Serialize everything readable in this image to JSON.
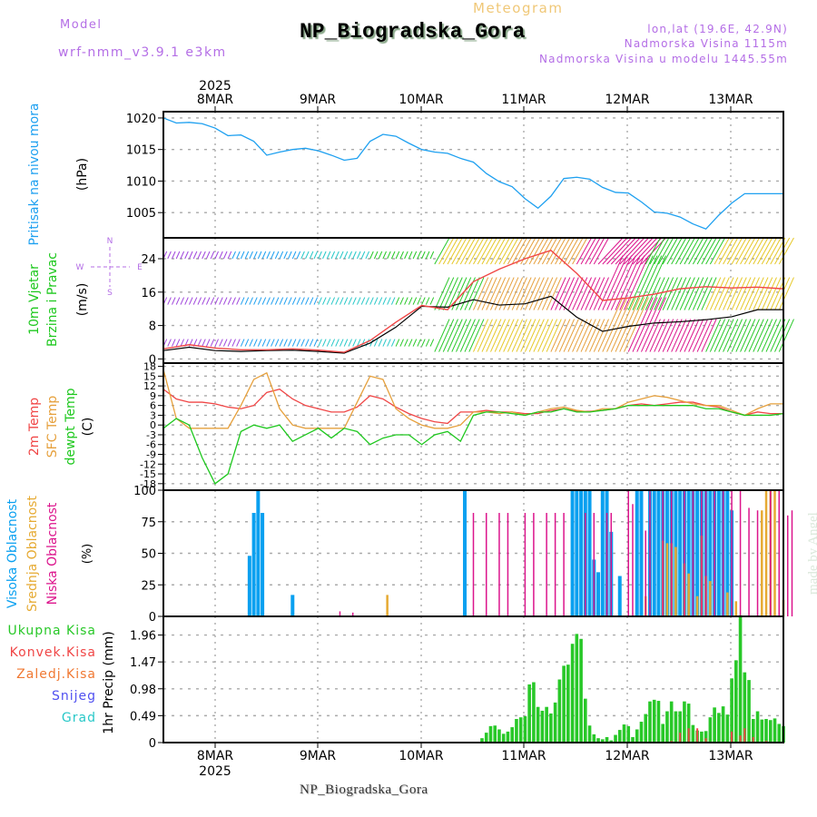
{
  "header": {
    "model_label": "Model",
    "model_name": "wrf-nmm_v3.9.1 e3km",
    "meteogram_label": "Meteogram",
    "station_title": "NP_Biogradska_Gora",
    "lonlat": "lon,lat (19.6E, 42.9N)",
    "elevation": "Nadmorska Visina 1115m",
    "model_elevation": "Nadmorska Visina u modelu 1445.55m"
  },
  "footer": {
    "station_title": "NP_Biogradska_Gora",
    "watermark": "made by Angel"
  },
  "colors": {
    "pressure": "#1ea0f0",
    "wind_label": "#1ec81e",
    "purple": "#a046dc",
    "temp2m": "#f04646",
    "sfc": "#e6a03c",
    "dewpt": "#1ec81e",
    "high_cloud": "#0aa0f0",
    "mid_cloud": "#e6aa32",
    "low_cloud": "#dc148c",
    "precip_total": "#28c828",
    "precip_conv": "#f04646",
    "freezing": "#f07832",
    "snow": "#5050f0",
    "hail": "#28c8c8",
    "compass": "#b46ee6"
  },
  "chart_data": [
    {
      "type": "line",
      "id": "pressure",
      "title": "Pritisak na nivou mora",
      "ylabel": "(hPa)",
      "x_ticks": [
        "8MAR",
        "9MAR",
        "10MAR",
        "11MAR",
        "12MAR",
        "13MAR"
      ],
      "top_year": "2025",
      "bottom_year": "2025",
      "x_unit": "hours from 7 MAR 12Z",
      "xlim": [
        0,
        144
      ],
      "ylim": [
        1001,
        1021
      ],
      "yticks": [
        1005,
        1010,
        1015,
        1020
      ],
      "grid": true,
      "series": [
        {
          "name": "Pritisak na nivou mora",
          "x": [
            0,
            3,
            6,
            9,
            12,
            15,
            18,
            21,
            24,
            27,
            30,
            33,
            36,
            39,
            42,
            45,
            48,
            51,
            54,
            57,
            60,
            63,
            66,
            69,
            72,
            75,
            78,
            81,
            84,
            87,
            90,
            93,
            96,
            99,
            102,
            105,
            108,
            111,
            114,
            117,
            120,
            123,
            126,
            129,
            132,
            135,
            138,
            141,
            144
          ],
          "values": [
            1020,
            1019.2,
            1019.3,
            1019.1,
            1018.4,
            1017.2,
            1017.3,
            1016.3,
            1014.1,
            1014.6,
            1015.0,
            1015.2,
            1014.8,
            1014.1,
            1013.3,
            1013.6,
            1016.3,
            1017.4,
            1017.1,
            1016.0,
            1015.0,
            1014.6,
            1014.4,
            1013.6,
            1013.0,
            1011.2,
            1009.9,
            1009.1,
            1007.2,
            1005.7,
            1007.6,
            1010.4,
            1010.6,
            1010.3,
            1009.0,
            1008.2,
            1008.1,
            1006.7,
            1005.1,
            1004.9,
            1004.3,
            1003.2,
            1002.4,
            1004.6,
            1006.5,
            1008.0,
            1008.0,
            1008.0,
            1008.0
          ]
        }
      ]
    },
    {
      "type": "line",
      "id": "wind",
      "title": "10m Vjetar Brzina i Pravac",
      "ylabel": "(m/s)",
      "compass": {
        "N": "N",
        "S": "S",
        "W": "W",
        "E": "E"
      },
      "xlim": [
        0,
        144
      ],
      "ylim": [
        -1,
        29
      ],
      "yticks": [
        0,
        8,
        16,
        24
      ],
      "grid": true,
      "series": [
        {
          "name": "Brzina vjetra (10m)",
          "color": "#000000",
          "x": [
            0,
            6,
            12,
            18,
            24,
            30,
            36,
            42,
            48,
            54,
            60,
            66,
            72,
            78,
            84,
            90,
            96,
            102,
            108,
            114,
            120,
            126,
            132,
            138,
            144
          ],
          "values": [
            2,
            2.8,
            2,
            1.8,
            2,
            2.1,
            1.8,
            1.4,
            3.8,
            7.6,
            12.6,
            12.4,
            14.2,
            12.9,
            13.2,
            15,
            10,
            6.6,
            7.8,
            8.6,
            8.9,
            9.4,
            10.1,
            11.8,
            11.8
          ]
        },
        {
          "name": "Udari vjetra",
          "color": "#f04646",
          "x": [
            0,
            6,
            12,
            18,
            24,
            30,
            36,
            42,
            48,
            54,
            60,
            66,
            72,
            78,
            84,
            90,
            96,
            102,
            108,
            114,
            120,
            126,
            132,
            138,
            144
          ],
          "values": [
            2.4,
            3.4,
            2.6,
            2.2,
            2.2,
            2.4,
            2.1,
            1.6,
            4.4,
            8.8,
            12.8,
            11.8,
            18.5,
            21.5,
            24,
            26,
            20.5,
            14,
            14.6,
            15.5,
            16.8,
            17.3,
            17,
            17.2,
            16.8
          ]
        }
      ],
      "barb_rows": [
        {
          "level": 24,
          "colors_by_segment": [
            "#a046dc",
            "#1ea0f0",
            "#28c8c8",
            "#28c828",
            "#e6c828",
            "#e6a03c",
            "#dc148c",
            "#28c828",
            "#e6c828"
          ]
        },
        {
          "level": 13,
          "colors_by_segment": [
            "#a046dc",
            "#1ea0f0",
            "#28c8c8",
            "#28c828",
            "#e6a03c",
            "#dc148c",
            "#28c828",
            "#e6c828"
          ]
        },
        {
          "level": 3,
          "colors_by_segment": [
            "#a046dc",
            "#1ea0f0",
            "#28c8c8",
            "#28c828",
            "#e6c828",
            "#e6a03c",
            "#dc148c",
            "#28c828"
          ]
        }
      ]
    },
    {
      "type": "line",
      "id": "temperature",
      "title": "2m Temp / SFC Temp / dewpt Temp",
      "ylabel": "(C)",
      "xlim": [
        0,
        144
      ],
      "ylim": [
        -20,
        19
      ],
      "yticks": [
        -18,
        -15,
        -12,
        -9,
        -6,
        -3,
        0,
        3,
        6,
        9,
        12,
        15,
        18
      ],
      "grid": true,
      "series": [
        {
          "name": "2m Temp",
          "x": [
            0,
            3,
            6,
            9,
            12,
            15,
            18,
            21,
            24,
            27,
            30,
            33,
            36,
            39,
            42,
            45,
            48,
            51,
            54,
            57,
            60,
            63,
            66,
            69,
            72,
            75,
            78,
            81,
            84,
            87,
            90,
            93,
            96,
            99,
            102,
            105,
            108,
            111,
            114,
            117,
            120,
            123,
            126,
            129,
            132,
            135,
            138,
            141,
            144
          ],
          "values": [
            11,
            8,
            7,
            7,
            6.5,
            5.5,
            5,
            6,
            10,
            11,
            8,
            6,
            5,
            4,
            4,
            5.5,
            9,
            8,
            5.5,
            3.5,
            2,
            1,
            0.5,
            4,
            4,
            4.5,
            4,
            4,
            3.5,
            3.5,
            4.5,
            5,
            4.2,
            4.2,
            4.5,
            5,
            6,
            6.5,
            6,
            6.5,
            7,
            7,
            6,
            5.5,
            4,
            3,
            4,
            3.5,
            3.5
          ]
        },
        {
          "name": "SFC Temp",
          "x": [
            0,
            3,
            6,
            9,
            12,
            15,
            18,
            21,
            24,
            27,
            30,
            33,
            36,
            39,
            42,
            45,
            48,
            51,
            54,
            57,
            60,
            63,
            66,
            69,
            72,
            75,
            78,
            81,
            84,
            87,
            90,
            93,
            96,
            99,
            102,
            105,
            108,
            111,
            114,
            117,
            120,
            123,
            126,
            129,
            132,
            135,
            138,
            141,
            144
          ],
          "values": [
            17,
            2,
            -1,
            -1,
            -1,
            -1,
            6,
            14,
            16,
            5,
            0,
            -1,
            -1,
            -1,
            -1,
            7,
            15,
            14,
            5,
            2,
            0,
            -1,
            -1,
            0,
            4,
            4,
            3.5,
            4,
            3,
            4,
            5,
            5.5,
            4.5,
            4,
            5,
            5,
            7,
            8,
            9,
            8.5,
            7.5,
            6.5,
            6,
            6,
            4.5,
            3,
            5,
            6.5,
            6.5
          ]
        },
        {
          "name": "dewpt Temp",
          "x": [
            0,
            3,
            6,
            9,
            12,
            15,
            18,
            21,
            24,
            27,
            30,
            33,
            36,
            39,
            42,
            45,
            48,
            51,
            54,
            57,
            60,
            63,
            66,
            69,
            72,
            75,
            78,
            81,
            84,
            87,
            90,
            93,
            96,
            99,
            102,
            105,
            108,
            111,
            114,
            117,
            120,
            123,
            126,
            129,
            132,
            135,
            138,
            141,
            144
          ],
          "values": [
            -1,
            2,
            0,
            -10,
            -18,
            -15,
            -2,
            0,
            -1,
            0,
            -5,
            -3,
            -1,
            -4,
            -1,
            -2,
            -6,
            -4,
            -3,
            -3,
            -6,
            -3,
            -2,
            -5,
            3,
            4,
            4,
            3.5,
            3,
            4,
            4,
            5,
            4,
            4,
            4.5,
            5,
            6,
            6,
            6,
            6,
            6,
            6,
            5,
            5,
            4,
            3,
            3,
            3,
            3.5
          ]
        }
      ]
    },
    {
      "type": "bar",
      "id": "clouds",
      "title": "Visoka / Srednja / Niska Oblacnost",
      "ylabel": "(%)",
      "xlim": [
        0,
        144
      ],
      "ylim": [
        0,
        100
      ],
      "yticks": [
        0,
        25,
        50,
        75,
        100
      ],
      "grid": true,
      "series": [
        {
          "name": "Visoka Oblacnost",
          "x": [
            20,
            21,
            22,
            23,
            30,
            70,
            95,
            96,
            97,
            98,
            99,
            100,
            101,
            102,
            103,
            104,
            106,
            110,
            111,
            113,
            114,
            115,
            116,
            117,
            118,
            119,
            120,
            121,
            122,
            123,
            124,
            125,
            126,
            127,
            128,
            129,
            130,
            131,
            132
          ],
          "values": [
            48,
            82,
            100,
            82,
            17,
            100,
            100,
            100,
            100,
            100,
            100,
            45,
            35,
            100,
            100,
            67,
            32,
            100,
            100,
            100,
            100,
            100,
            100,
            100,
            100,
            100,
            100,
            100,
            100,
            100,
            100,
            100,
            100,
            100,
            100,
            100,
            100,
            100,
            84
          ]
        },
        {
          "name": "Srednja Oblacnost",
          "x": [
            52,
            112,
            116,
            117,
            118,
            119,
            121,
            122,
            124,
            125,
            126,
            127,
            131,
            133,
            139,
            140,
            141,
            142,
            144
          ],
          "values": [
            17,
            16,
            60,
            58,
            58,
            55,
            42,
            34,
            16,
            64,
            32,
            28,
            19,
            12,
            84,
            100,
            100,
            100,
            13
          ]
        },
        {
          "name": "Niska Oblacnost",
          "x": [
            41,
            44,
            72,
            75,
            78,
            80,
            84,
            86,
            89,
            91,
            93,
            98,
            100,
            103,
            104,
            108,
            109,
            112,
            113,
            116,
            118,
            121,
            123,
            125,
            126,
            128,
            130,
            132,
            134,
            136,
            138,
            141,
            143,
            145,
            146
          ],
          "values": [
            4,
            3,
            82,
            82,
            82,
            82,
            82,
            82,
            82,
            82,
            82,
            82,
            82,
            82,
            82,
            100,
            89,
            68,
            100,
            100,
            100,
            100,
            100,
            100,
            100,
            100,
            100,
            100,
            100,
            86,
            84,
            100,
            100,
            80,
            84
          ]
        }
      ]
    },
    {
      "type": "bar",
      "id": "precip",
      "title": "1hr Precip",
      "ylabel": "(mm)",
      "legend": [
        "Ukupna Kisa",
        "Konvek.Kisa",
        "Zaledj.Kisa",
        "Snijeg",
        "Grad"
      ],
      "xlim": [
        0,
        144
      ],
      "ylim": [
        0,
        2.3
      ],
      "yticks": [
        0,
        0.49,
        0.98,
        1.47,
        1.96
      ],
      "yticklabels": [
        "0",
        "0.49",
        "0.98",
        "1.47",
        "1.96"
      ],
      "grid": true,
      "series": [
        {
          "name": "Ukupna Kisa",
          "x": [
            74,
            75,
            76,
            77,
            78,
            79,
            80,
            81,
            82,
            83,
            84,
            85,
            86,
            87,
            88,
            89,
            90,
            91,
            92,
            93,
            94,
            95,
            96,
            97,
            98,
            99,
            100,
            101,
            102,
            103,
            104,
            105,
            106,
            107,
            108,
            109,
            110,
            111,
            112,
            113,
            114,
            115,
            116,
            117,
            118,
            119,
            120,
            121,
            122,
            123,
            124,
            125,
            126,
            127,
            128,
            129,
            130,
            131,
            132,
            133,
            134,
            135,
            136,
            137,
            138,
            139,
            140,
            141,
            142,
            143,
            144
          ],
          "values": [
            0.08,
            0.18,
            0.3,
            0.31,
            0.24,
            0.16,
            0.2,
            0.28,
            0.43,
            0.46,
            0.48,
            1.06,
            1.1,
            0.65,
            0.58,
            0.65,
            0.53,
            0.73,
            1.15,
            1.4,
            1.42,
            1.8,
            1.98,
            1.89,
            0.8,
            0.31,
            0.15,
            0.08,
            0.06,
            0.1,
            0.04,
            0.14,
            0.23,
            0.33,
            0.3,
            0.1,
            0.24,
            0.38,
            0.52,
            0.75,
            0.78,
            0.76,
            0.34,
            0.57,
            0.75,
            0.57,
            0.57,
            0.75,
            0.71,
            0.32,
            0.22,
            0.2,
            0.21,
            0.46,
            0.64,
            0.54,
            0.66,
            0.51,
            1.17,
            1.5,
            2.32,
            1.28,
            1.14,
            0.43,
            0.57,
            0.42,
            0.43,
            0.41,
            0.44,
            0.34,
            0.3
          ]
        },
        {
          "name": "Konvek.Kisa",
          "x": [
            118,
            120,
            122,
            124,
            126,
            132,
            134,
            135,
            137,
            140
          ],
          "values": [
            0.03,
            0.18,
            0.26,
            0.26,
            0.08,
            0.2,
            0.13,
            0.26,
            0.1,
            0.03
          ]
        }
      ]
    }
  ],
  "axis_labels": {
    "pressure": [
      "Pritisak na nivou mora",
      "(hPa)"
    ],
    "wind": [
      "10m Vjetar",
      "Brzina i Pravac",
      "(m/s)"
    ],
    "temp": [
      "2m Temp",
      "SFC Temp",
      "dewpt Temp",
      "(C)"
    ],
    "clouds": [
      "Visoka Oblacnost",
      "Srednja Oblacnost",
      "Niska Oblacnost",
      "(%)"
    ],
    "precip": [
      "1hr Precip (mm)"
    ]
  }
}
